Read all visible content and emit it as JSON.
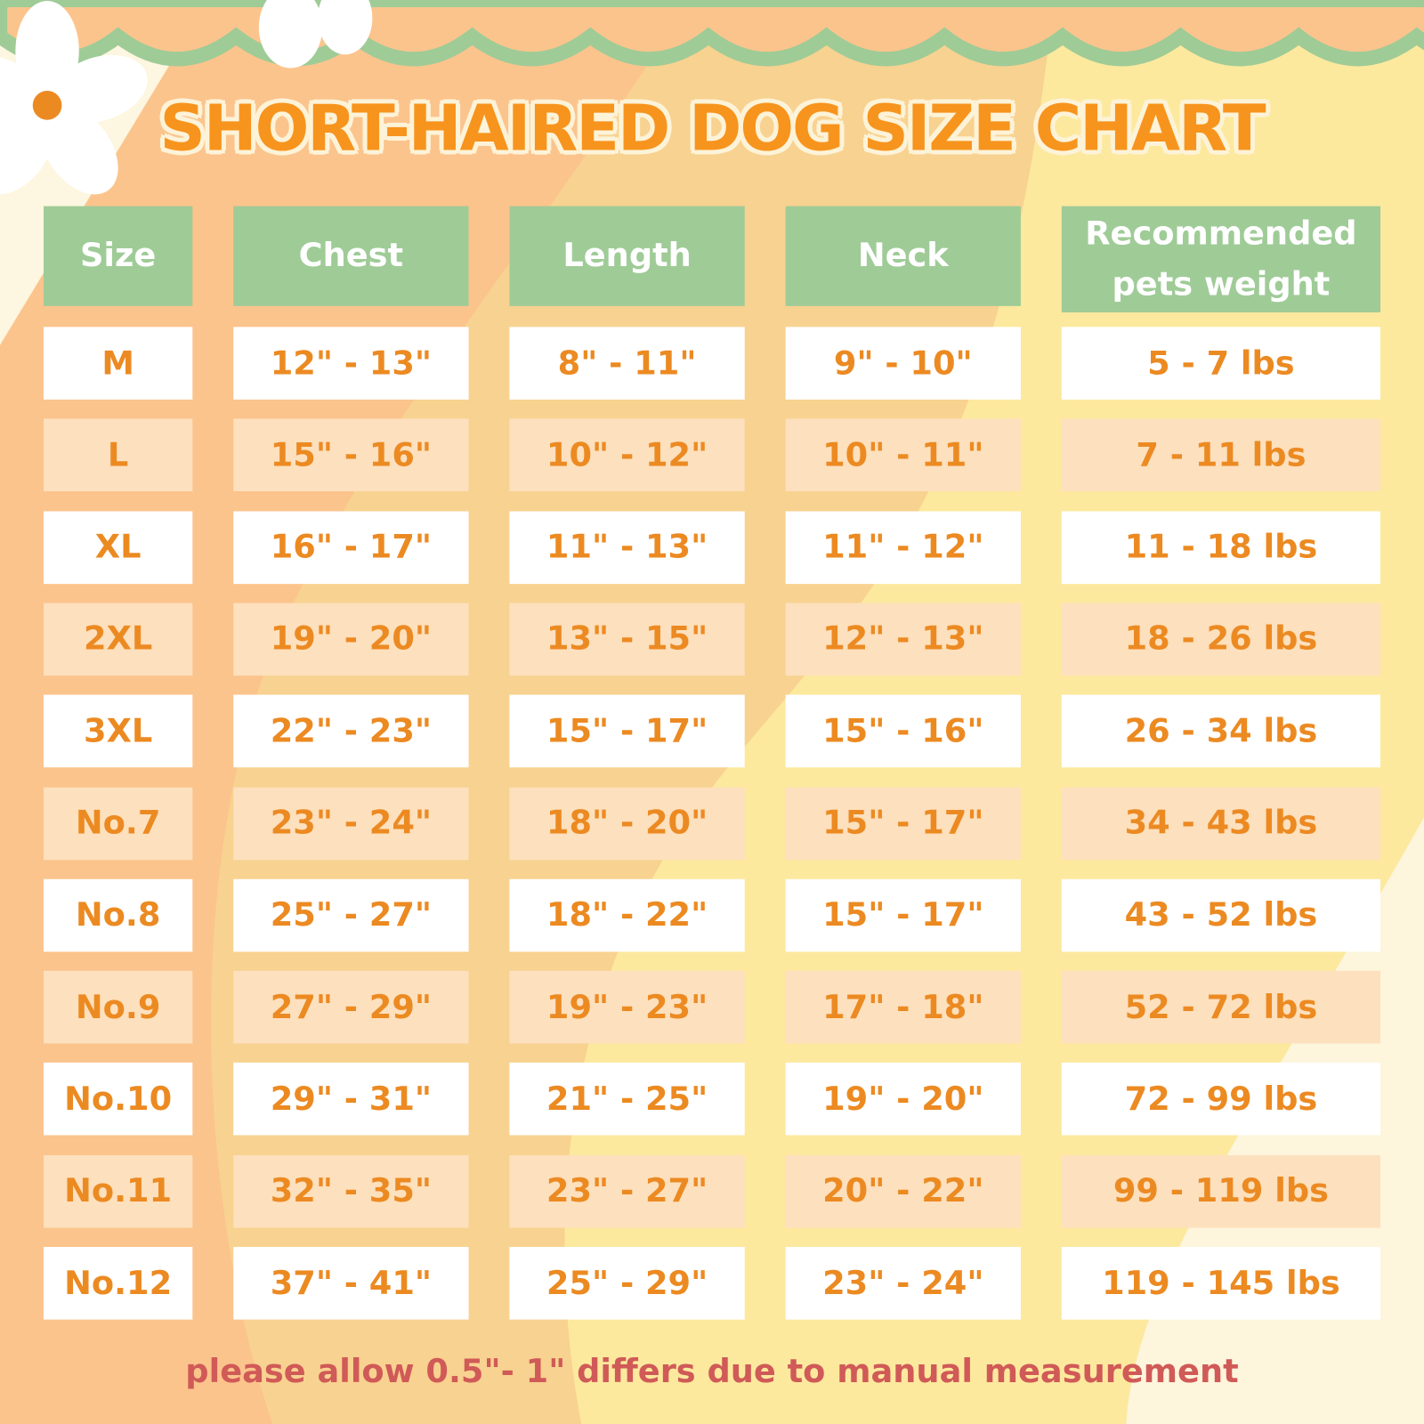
{
  "title": "SHORT-HAIRED DOG SIZE CHART",
  "colors": {
    "header_bg": "#9fcb97",
    "cell_text": "#ec8a22",
    "row_alt": "#fde0bd",
    "row": "#ffffff",
    "title": "#f7941d",
    "note": "#d05a57"
  },
  "chart_data": {
    "type": "table",
    "columns": [
      "Size",
      "Chest",
      "Length",
      "Neck",
      "Recommended pets weight"
    ],
    "rows": [
      [
        "M",
        "12\" - 13\"",
        "8\" - 11\"",
        "9\" - 10\"",
        "5 - 7 lbs"
      ],
      [
        "L",
        "15\" - 16\"",
        "10\" - 12\"",
        "10\" - 11\"",
        "7 - 11 lbs"
      ],
      [
        "XL",
        "16\" - 17\"",
        "11\" - 13\"",
        "11\" - 12\"",
        "11 - 18 lbs"
      ],
      [
        "2XL",
        "19\" - 20\"",
        "13\" - 15\"",
        "12\" - 13\"",
        "18 - 26 lbs"
      ],
      [
        "3XL",
        "22\" - 23\"",
        "15\" - 17\"",
        "15\" - 16\"",
        "26 - 34 lbs"
      ],
      [
        "No.7",
        "23\" - 24\"",
        "18\" - 20\"",
        "15\" - 17\"",
        "34 - 43 lbs"
      ],
      [
        "No.8",
        "25\" - 27\"",
        "18\" - 22\"",
        "15\" - 17\"",
        "43 - 52 lbs"
      ],
      [
        "No.9",
        "27\" - 29\"",
        "19\" - 23\"",
        "17\" - 18\"",
        "52 - 72 lbs"
      ],
      [
        "No.10",
        "29\" - 31\"",
        "21\" - 25\"",
        "19\" - 20\"",
        "72 - 99 lbs"
      ],
      [
        "No.11",
        "32\" - 35\"",
        "23\" - 27\"",
        "20\" - 22\"",
        "99 - 119 lbs"
      ],
      [
        "No.12",
        "37\" - 41\"",
        "25\" - 29\"",
        "23\" - 24\"",
        "119 - 145 lbs"
      ]
    ]
  },
  "note": "please allow 0.5\"- 1\" differs due to manual measurement"
}
